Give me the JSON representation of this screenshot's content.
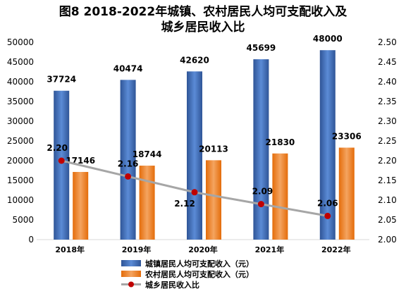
{
  "chart_data": {
    "type": "bar",
    "title_line1": "图8  2018-2022年城镇、农村居民人均可支配收入及",
    "title_line2": "城乡居民收入比",
    "categories": [
      "2018年",
      "2019年",
      "2020年",
      "2021年",
      "2022年"
    ],
    "series": [
      {
        "name": "城镇居民人均可支配收入（元）",
        "kind": "bar",
        "axis": "left",
        "values": [
          37724,
          40474,
          42620,
          45699,
          48000
        ],
        "color": "#4472c4"
      },
      {
        "name": "农村居民人均可支配收入（元）",
        "kind": "bar",
        "axis": "left",
        "values": [
          17146,
          18744,
          20113,
          21830,
          23306
        ],
        "color": "#ed7d31"
      },
      {
        "name": "城乡居民收入比",
        "kind": "line",
        "axis": "right",
        "values": [
          2.2,
          2.16,
          2.12,
          2.09,
          2.06
        ],
        "color": "#a6a6a6",
        "marker_color": "#c00000"
      }
    ],
    "left_axis": {
      "min": 0,
      "max": 50000,
      "step": 5000,
      "ticks": [
        "0",
        "5000",
        "10000",
        "15000",
        "20000",
        "25000",
        "30000",
        "35000",
        "40000",
        "45000",
        "50000"
      ]
    },
    "right_axis": {
      "min": 2.0,
      "max": 2.5,
      "step": 0.05,
      "ticks": [
        "2.00",
        "2.05",
        "2.10",
        "2.15",
        "2.20",
        "2.25",
        "2.30",
        "2.35",
        "2.40",
        "2.45",
        "2.50"
      ]
    },
    "urban_labels": [
      "37724",
      "40474",
      "42620",
      "45699",
      "48000"
    ],
    "rural_labels": [
      "17146",
      "18744",
      "20113",
      "21830",
      "23306"
    ],
    "ratio_labels": [
      "2.20",
      "2.16",
      "2.12",
      "2.09",
      "2.06"
    ],
    "grid": false,
    "legend_position": "bottom"
  }
}
